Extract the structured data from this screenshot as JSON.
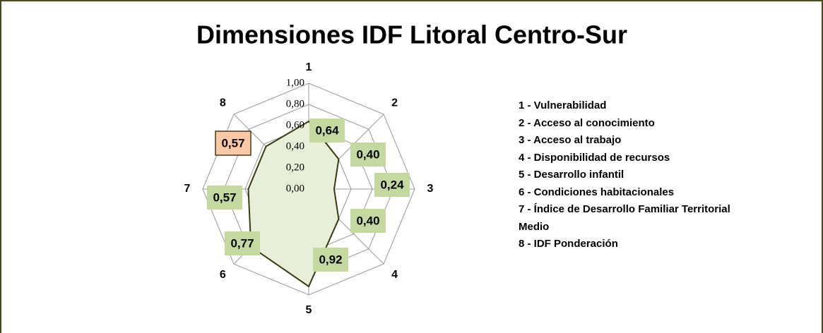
{
  "chart_data": {
    "type": "radar",
    "title": "Dimensiones IDF Litoral Centro-Sur",
    "categories": [
      "1",
      "2",
      "3",
      "4",
      "5",
      "6",
      "7",
      "8"
    ],
    "values": [
      0.64,
      0.4,
      0.24,
      0.4,
      0.92,
      0.77,
      0.57,
      0.57
    ],
    "value_labels": [
      "0,64",
      "0,40",
      "0,24",
      "0,40",
      "0,92",
      "0,77",
      "0,57",
      "0,57"
    ],
    "value_label_colors": [
      "#c4d9a0",
      "#c4d9a0",
      "#c4d9a0",
      "#c4d9a0",
      "#c4d9a0",
      "#c4d9a0",
      "#c4d9a0",
      "#f9c9a5"
    ],
    "color": "#3a3a10",
    "fill": "#e8efd8",
    "ylim": [
      0,
      1
    ],
    "yticks": [
      {
        "value": 0,
        "label": "0,00"
      },
      {
        "value": 0.2,
        "label": "0,20"
      },
      {
        "value": 0.4,
        "label": "0,40"
      },
      {
        "value": 0.6,
        "label": "0,60"
      },
      {
        "value": 0.8,
        "label": "0,80"
      },
      {
        "value": 1,
        "label": "1,00"
      }
    ],
    "grid": true,
    "legend": [
      "1 - Vulnerabilidad",
      "2 - Acceso al conocimiento",
      "3 - Acceso al trabajo",
      "4 - Disponibilidad de recursos",
      "5 - Desarrollo infantil",
      "6 - Condiciones habitacionales",
      "7 - Índice de Desarrollo Familiar Territorial Medio",
      "8 - IDF Ponderación"
    ]
  }
}
